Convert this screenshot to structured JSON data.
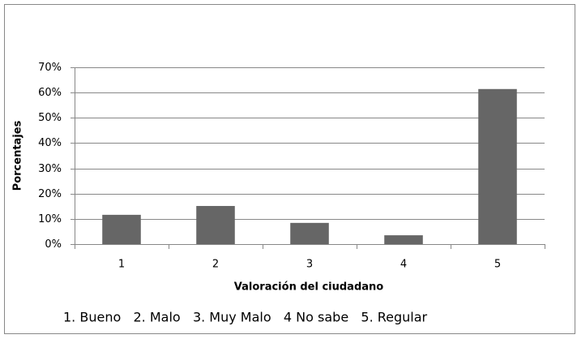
{
  "chart_data": {
    "type": "bar",
    "categories": [
      "1",
      "2",
      "3",
      "4",
      "5"
    ],
    "values": [
      11.6,
      15.1,
      8.4,
      3.5,
      61.4
    ],
    "color": "#666666",
    "xlabel": "Valoración del ciudadano",
    "ylabel": "Porcentajes",
    "ylim": [
      0,
      70
    ],
    "yticks": [
      {
        "value": 0,
        "label": "0%"
      },
      {
        "value": 10,
        "label": "10%"
      },
      {
        "value": 20,
        "label": "20%"
      },
      {
        "value": 30,
        "label": "30%"
      },
      {
        "value": 40,
        "label": "40%"
      },
      {
        "value": 50,
        "label": "50%"
      },
      {
        "value": 60,
        "label": "60%"
      },
      {
        "value": 70,
        "label": "70%"
      }
    ],
    "grid": true,
    "note": "1. Bueno   2. Malo   3. Muy Malo   4 No sabe   5. Regular"
  }
}
